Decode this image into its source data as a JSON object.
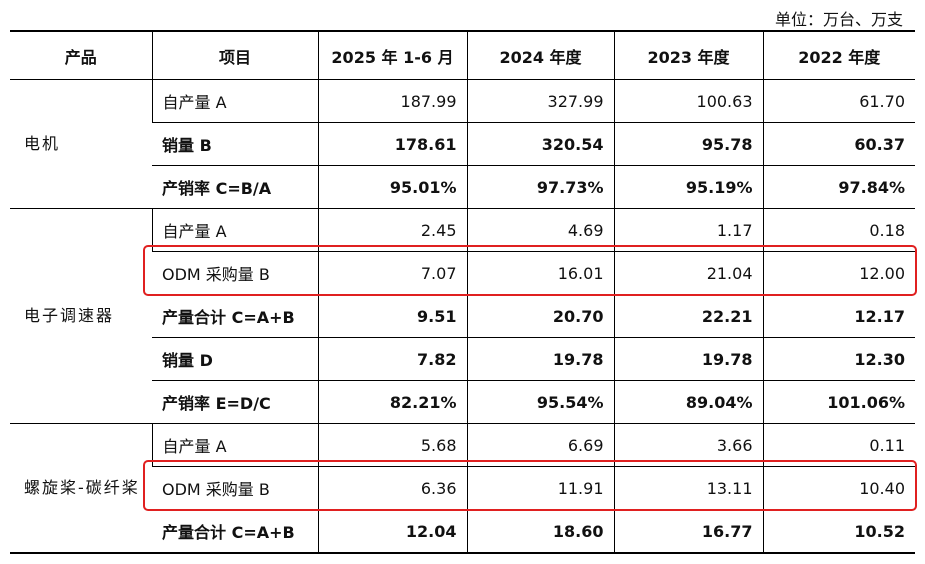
{
  "unit": "单位：万台、万支",
  "header": [
    "产品",
    "项目",
    "2025 年 1-6 月",
    "2024 年度",
    "2023 年度",
    "2022 年度"
  ],
  "groups": [
    {
      "product": "电机",
      "rows": [
        {
          "item": "自产量 A",
          "bold": false,
          "highlight": false,
          "values": [
            "187.99",
            "327.99",
            "100.63",
            "61.70"
          ]
        },
        {
          "item": "销量 B",
          "bold": true,
          "highlight": false,
          "values": [
            "178.61",
            "320.54",
            "95.78",
            "60.37"
          ]
        },
        {
          "item": "产销率 C=B/A",
          "bold": true,
          "highlight": false,
          "values": [
            "95.01%",
            "97.73%",
            "95.19%",
            "97.84%"
          ]
        }
      ]
    },
    {
      "product": "电子调速器",
      "rows": [
        {
          "item": "自产量 A",
          "bold": false,
          "highlight": false,
          "values": [
            "2.45",
            "4.69",
            "1.17",
            "0.18"
          ]
        },
        {
          "item": "ODM 采购量 B",
          "bold": false,
          "highlight": true,
          "values": [
            "7.07",
            "16.01",
            "21.04",
            "12.00"
          ]
        },
        {
          "item": "产量合计 C=A+B",
          "bold": true,
          "highlight": false,
          "values": [
            "9.51",
            "20.70",
            "22.21",
            "12.17"
          ]
        },
        {
          "item": "销量 D",
          "bold": true,
          "highlight": false,
          "values": [
            "7.82",
            "19.78",
            "19.78",
            "12.30"
          ]
        },
        {
          "item": "产销率 E=D/C",
          "bold": true,
          "highlight": false,
          "values": [
            "82.21%",
            "95.54%",
            "89.04%",
            "101.06%"
          ]
        }
      ]
    },
    {
      "product": "螺旋桨-碳纤桨",
      "rows": [
        {
          "item": "自产量 A",
          "bold": false,
          "highlight": false,
          "values": [
            "5.68",
            "6.69",
            "3.66",
            "0.11"
          ]
        },
        {
          "item": "ODM 采购量 B",
          "bold": false,
          "highlight": true,
          "values": [
            "6.36",
            "11.91",
            "13.11",
            "10.40"
          ]
        },
        {
          "item": "产量合计 C=A+B",
          "bold": true,
          "highlight": false,
          "values": [
            "12.04",
            "18.60",
            "16.77",
            "10.52"
          ]
        }
      ]
    }
  ]
}
